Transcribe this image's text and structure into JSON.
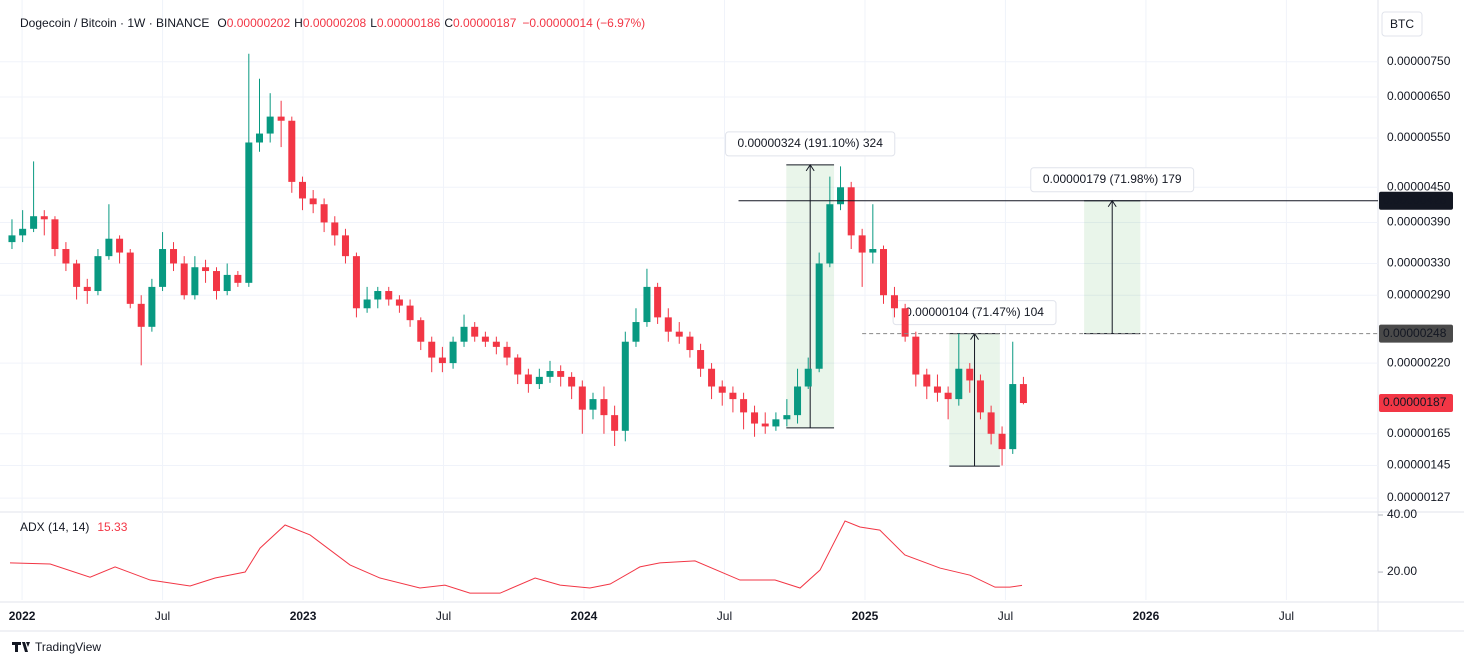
{
  "chart_data": {
    "type": "candlestick",
    "header": {
      "symbol": "Dogecoin / Bitcoin · 1W · BINANCE",
      "ohlc": [
        {
          "key": "O",
          "value": "0.00000202"
        },
        {
          "key": "H",
          "value": "0.00000208"
        },
        {
          "key": "L",
          "value": "0.00000186"
        },
        {
          "key": "C",
          "value": "0.00000187"
        }
      ],
      "change": "−0.00000014 (−6.97%)"
    },
    "currency": "BTC",
    "brand": "TradingView",
    "up_color": "#089981",
    "down_color": "#f23645",
    "yscale": "log",
    "grid": true,
    "xlim": [
      2021.957,
      2026.826
    ],
    "xticks": [
      2022,
      {
        "value": 2022.5,
        "label": "Jul"
      },
      2023,
      {
        "value": 2023.5,
        "label": "Jul"
      },
      2024,
      {
        "value": 2024.5,
        "label": "Jul"
      },
      2025,
      {
        "value": 2025.5,
        "label": "Jul"
      },
      2026,
      {
        "value": 2026.5,
        "label": "Jul"
      }
    ],
    "ylim": [
      1.2e-06,
      9.26e-06
    ],
    "yticks": [
      {
        "value": 7.5e-06,
        "label": "0.00000750"
      },
      {
        "value": 6.5e-06,
        "label": "0.00000650"
      },
      {
        "value": 5.5e-06,
        "label": "0.00000550"
      },
      {
        "value": 4.5e-06,
        "label": "0.00000450"
      },
      {
        "value": 3.9e-06,
        "label": "0.00000390"
      },
      {
        "value": 3.3e-06,
        "label": "0.00000330"
      },
      {
        "value": 2.9e-06,
        "label": "0.00000290"
      },
      {
        "value": 2.2e-06,
        "label": "0.00000220"
      },
      {
        "value": 1.65e-06,
        "label": "0.00000165"
      },
      {
        "value": 1.45e-06,
        "label": "0.00000145"
      },
      {
        "value": 1.27e-06,
        "label": "0.00000127"
      }
    ],
    "x": [
      2021.964,
      2022.002,
      2022.041,
      2022.079,
      2022.117,
      2022.156,
      2022.194,
      2022.232,
      2022.27,
      2022.309,
      2022.347,
      2022.385,
      2022.424,
      2022.462,
      2022.5,
      2022.539,
      2022.577,
      2022.615,
      2022.653,
      2022.692,
      2022.73,
      2022.768,
      2022.807,
      2022.845,
      2022.883,
      2022.922,
      2022.96,
      2022.998,
      2023.036,
      2023.075,
      2023.113,
      2023.151,
      2023.19,
      2023.228,
      2023.266,
      2023.305,
      2023.343,
      2023.381,
      2023.419,
      2023.458,
      2023.496,
      2023.534,
      2023.573,
      2023.611,
      2023.649,
      2023.688,
      2023.726,
      2023.764,
      2023.802,
      2023.841,
      2023.879,
      2023.917,
      2023.956,
      2023.994,
      2024.032,
      2024.071,
      2024.109,
      2024.147,
      2024.185,
      2024.224,
      2024.262,
      2024.3,
      2024.339,
      2024.377,
      2024.415,
      2024.454,
      2024.492,
      2024.53,
      2024.568,
      2024.607,
      2024.645,
      2024.683,
      2024.722,
      2024.76,
      2024.798,
      2024.837,
      2024.875,
      2024.913,
      2024.951,
      2024.99,
      2025.028,
      2025.066,
      2025.105,
      2025.143,
      2025.181,
      2025.22,
      2025.258,
      2025.296,
      2025.334,
      2025.373,
      2025.411,
      2025.449,
      2025.488,
      2025.526,
      2025.564
    ],
    "open": [
      3.6e-06,
      3.7e-06,
      3.8e-06,
      4e-06,
      3.95e-06,
      3.5e-06,
      3.3e-06,
      3e-06,
      2.95e-06,
      3.4e-06,
      3.65e-06,
      3.45e-06,
      2.8e-06,
      2.55e-06,
      3e-06,
      3.5e-06,
      3.3e-06,
      2.9e-06,
      3.25e-06,
      3.2e-06,
      2.95e-06,
      3.15e-06,
      3.05e-06,
      5.4e-06,
      5.6e-06,
      6e-06,
      5.9e-06,
      4.6e-06,
      4.3e-06,
      4.2e-06,
      3.9e-06,
      3.7e-06,
      3.4e-06,
      2.75e-06,
      2.85e-06,
      2.95e-06,
      2.85e-06,
      2.78e-06,
      2.62e-06,
      2.4e-06,
      2.25e-06,
      2.2e-06,
      2.4e-06,
      2.55e-06,
      2.45e-06,
      2.4e-06,
      2.35e-06,
      2.25e-06,
      2.1e-06,
      2.02e-06,
      2.08e-06,
      2.13e-06,
      2.08e-06,
      2e-06,
      1.82e-06,
      1.9e-06,
      1.78e-06,
      1.67e-06,
      2.4e-06,
      2.6e-06,
      3e-06,
      2.65e-06,
      2.5e-06,
      2.45e-06,
      2.32e-06,
      2.15e-06,
      2e-06,
      1.95e-06,
      1.9e-06,
      1.8e-06,
      1.72e-06,
      1.7e-06,
      1.75e-06,
      1.78e-06,
      2e-06,
      2.15e-06,
      3.3e-06,
      4.2e-06,
      4.5e-06,
      3.7e-06,
      3.45e-06,
      3.5e-06,
      2.9e-06,
      2.75e-06,
      2.45e-06,
      2.1e-06,
      2e-06,
      1.95e-06,
      1.9e-06,
      2.15e-06,
      2.05e-06,
      1.8e-06,
      1.65e-06,
      1.55e-06,
      2.02e-06
    ],
    "high": [
      3.95e-06,
      4.1e-06,
      5e-06,
      4.1e-06,
      4e-06,
      3.6e-06,
      3.35e-06,
      3.1e-06,
      3.5e-06,
      4.2e-06,
      3.7e-06,
      3.5e-06,
      2.9e-06,
      3.1e-06,
      3.75e-06,
      3.6e-06,
      3.4e-06,
      3.4e-06,
      3.35e-06,
      3.25e-06,
      3.3e-06,
      3.2e-06,
      7.75e-06,
      7e-06,
      6.6e-06,
      6.4e-06,
      6e-06,
      4.7e-06,
      4.45e-06,
      4.3e-06,
      4e-06,
      3.8e-06,
      3.45e-06,
      3e-06,
      3e-06,
      3e-06,
      2.9e-06,
      2.85e-06,
      2.65e-06,
      2.45e-06,
      2.35e-06,
      2.45e-06,
      2.68e-06,
      2.6e-06,
      2.5e-06,
      2.45e-06,
      2.4e-06,
      2.28e-06,
      2.15e-06,
      2.15e-06,
      2.22e-06,
      2.18e-06,
      2.12e-06,
      2.05e-06,
      1.95e-06,
      2e-06,
      1.85e-06,
      2.5e-06,
      2.75e-06,
      3.23e-06,
      3.05e-06,
      2.75e-06,
      2.6e-06,
      2.5e-06,
      2.38e-06,
      2.2e-06,
      2.05e-06,
      2e-06,
      1.95e-06,
      1.85e-06,
      1.8e-06,
      1.8e-06,
      1.9e-06,
      2.15e-06,
      2.25e-06,
      3.45e-06,
      4.7e-06,
      4.9e-06,
      4.6e-06,
      3.8e-06,
      4.2e-06,
      3.55e-06,
      3e-06,
      2.8e-06,
      2.5e-06,
      2.15e-06,
      2.1e-06,
      2e-06,
      2.48e-06,
      2.2e-06,
      2.1e-06,
      1.85e-06,
      1.7e-06,
      2.4e-06,
      2.08e-06
    ],
    "low": [
      3.5e-06,
      3.6e-06,
      3.75e-06,
      3.7e-06,
      3.4e-06,
      3.2e-06,
      2.85e-06,
      2.8e-06,
      2.9e-06,
      3.35e-06,
      3.3e-06,
      2.75e-06,
      2.18e-06,
      2.5e-06,
      2.95e-06,
      3.2e-06,
      2.85e-06,
      2.85e-06,
      3.05e-06,
      2.85e-06,
      2.9e-06,
      3e-06,
      3e-06,
      5.2e-06,
      5.4e-06,
      5.3e-06,
      4.4e-06,
      4.1e-06,
      4.05e-06,
      3.75e-06,
      3.55e-06,
      3.3e-06,
      2.65e-06,
      2.7e-06,
      2.75e-06,
      2.78e-06,
      2.7e-06,
      2.55e-06,
      2.32e-06,
      2.12e-06,
      2.12e-06,
      2.15e-06,
      2.35e-06,
      2.4e-06,
      2.35e-06,
      2.28e-06,
      2.18e-06,
      2.02e-06,
      1.95e-06,
      1.98e-06,
      2.03e-06,
      2e-06,
      1.9e-06,
      1.65e-06,
      1.75e-06,
      1.65e-06,
      1.57e-06,
      1.6e-06,
      2.35e-06,
      2.55e-06,
      2.58e-06,
      2.4e-06,
      2.38e-06,
      2.25e-06,
      2.08e-06,
      1.9e-06,
      1.85e-06,
      1.8e-06,
      1.68e-06,
      1.63e-06,
      1.65e-06,
      1.67e-06,
      1.7e-06,
      1.72e-06,
      1.98e-06,
      2.12e-06,
      3.25e-06,
      4.1e-06,
      3.5e-06,
      3e-06,
      3.3e-06,
      2.8e-06,
      2.65e-06,
      2.4e-06,
      2e-06,
      1.9e-06,
      1.88e-06,
      1.75e-06,
      1.85e-06,
      1.95e-06,
      1.75e-06,
      1.58e-06,
      1.45e-06,
      1.52e-06,
      1.86e-06
    ],
    "close": [
      3.7e-06,
      3.8e-06,
      4e-06,
      3.95e-06,
      3.5e-06,
      3.3e-06,
      3e-06,
      2.95e-06,
      3.4e-06,
      3.65e-06,
      3.45e-06,
      2.8e-06,
      2.55e-06,
      3e-06,
      3.5e-06,
      3.3e-06,
      2.9e-06,
      3.25e-06,
      3.2e-06,
      2.95e-06,
      3.15e-06,
      3.05e-06,
      5.4e-06,
      5.6e-06,
      6e-06,
      5.9e-06,
      4.6e-06,
      4.3e-06,
      4.2e-06,
      3.9e-06,
      3.7e-06,
      3.4e-06,
      2.75e-06,
      2.85e-06,
      2.95e-06,
      2.85e-06,
      2.78e-06,
      2.62e-06,
      2.4e-06,
      2.25e-06,
      2.2e-06,
      2.4e-06,
      2.55e-06,
      2.45e-06,
      2.4e-06,
      2.35e-06,
      2.25e-06,
      2.1e-06,
      2.02e-06,
      2.08e-06,
      2.13e-06,
      2.08e-06,
      2e-06,
      1.82e-06,
      1.9e-06,
      1.78e-06,
      1.67e-06,
      2.4e-06,
      2.6e-06,
      3e-06,
      2.65e-06,
      2.5e-06,
      2.45e-06,
      2.32e-06,
      2.15e-06,
      2e-06,
      1.95e-06,
      1.9e-06,
      1.8e-06,
      1.72e-06,
      1.7e-06,
      1.75e-06,
      1.78e-06,
      2e-06,
      2.15e-06,
      3.3e-06,
      4.2e-06,
      4.5e-06,
      3.7e-06,
      3.45e-06,
      3.5e-06,
      2.9e-06,
      2.75e-06,
      2.45e-06,
      2.1e-06,
      2e-06,
      1.95e-06,
      1.9e-06,
      2.15e-06,
      2.05e-06,
      1.8e-06,
      1.65e-06,
      1.55e-06,
      2.02e-06,
      1.87e-06
    ],
    "measures": [
      {
        "label": "0.00000324 (191.10%) 324",
        "x": [
          2024.72,
          2024.89
        ],
        "y": [
          1.69e-06,
          4.93e-06
        ]
      },
      {
        "label": "0.00000104 (71.47%) 104",
        "x": [
          2025.3,
          2025.48
        ],
        "y": [
          1.446e-06,
          2.48e-06
        ]
      },
      {
        "label": "0.00000179 (71.98%) 179",
        "x": [
          2025.78,
          2025.98
        ],
        "y": [
          2.48e-06,
          4.26e-06
        ]
      }
    ],
    "price_labels": [
      {
        "value": 4.26e-06,
        "label": "0.00000426",
        "color": "#131722",
        "line_from": 2024.55,
        "dashed": false
      },
      {
        "value": 2.48e-06,
        "label": "0.00000248",
        "color": "#4a4a4a",
        "line_from": 2024.99,
        "dashed": true
      },
      {
        "value": 1.87e-06,
        "label": "0.00000187",
        "color": "#f23645"
      }
    ],
    "indicator": {
      "type": "line",
      "name": "ADX (14, 14)",
      "color": "#f23645",
      "ylim": [
        10.2,
        41.05
      ],
      "yticks": [
        {
          "value": 40,
          "label": "40.00"
        },
        {
          "value": 20,
          "label": "20.00"
        }
      ],
      "x": [
        2021.957,
        2022.1,
        2022.242,
        2022.331,
        2022.456,
        2022.598,
        2022.687,
        2022.794,
        2022.847,
        2022.936,
        2023.025,
        2023.167,
        2023.274,
        2023.416,
        2023.505,
        2023.594,
        2023.701,
        2023.826,
        2023.915,
        2024.021,
        2024.093,
        2024.199,
        2024.27,
        2024.395,
        2024.555,
        2024.68,
        2024.769,
        2024.84,
        2024.929,
        2024.982,
        2025.053,
        2025.142,
        2025.267,
        2025.374,
        2025.463,
        2025.516,
        2025.559
      ],
      "values": [
        23.2,
        22.8,
        18.2,
        21.8,
        17.2,
        15.1,
        17.9,
        20,
        28.4,
        36.5,
        33.0,
        22.5,
        17.9,
        14.4,
        15.4,
        12.6,
        12.6,
        17.9,
        15.4,
        14.4,
        15.8,
        21.8,
        23.2,
        23.9,
        17.2,
        17.2,
        14.4,
        20.7,
        37.9,
        35.8,
        34.7,
        26.0,
        21.4,
        18.9,
        14.7,
        14.7,
        15.33
      ]
    }
  }
}
